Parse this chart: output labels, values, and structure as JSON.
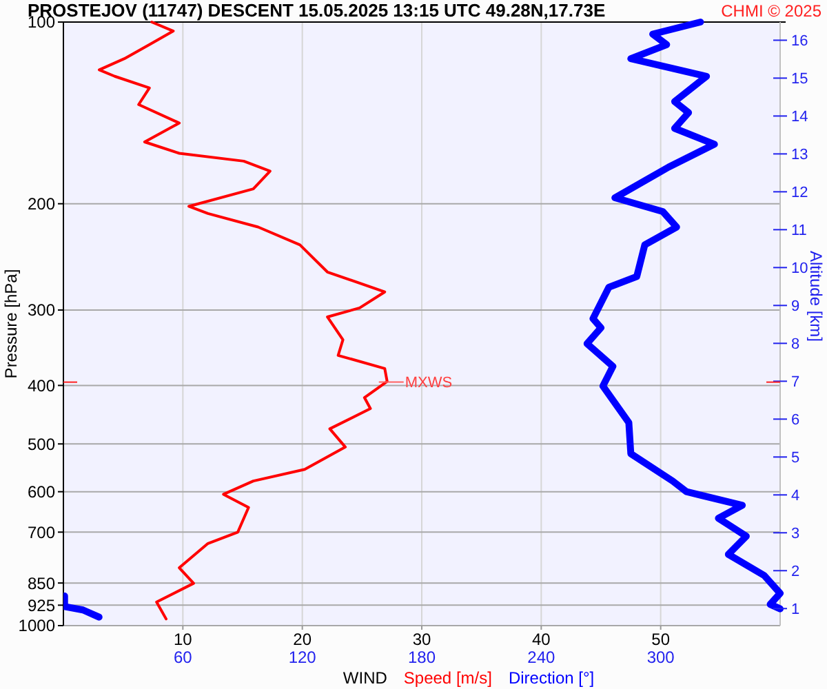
{
  "chart_data": {
    "type": "line",
    "orientation": "horizontal",
    "title": "PROSTEJOV (11747)   DESCENT   15.05.2025 13:15 UTC  49.28N,17.73E",
    "xlabel": "WIND",
    "ylabel": "Pressure [hPa]",
    "y2label": "Altitude [km]",
    "annotations": [
      "CHMI © 2025",
      {
        "text": "MXWS",
        "x": 27.1,
        "y": 395
      }
    ],
    "log": "y",
    "grid": true,
    "legend": "bottom",
    "xlim": [
      0,
      60
    ],
    "xticks": [
      10,
      20,
      30,
      40,
      50
    ],
    "x2lim": [
      0,
      360
    ],
    "x2ticks": [
      60,
      120,
      180,
      240,
      300
    ],
    "ylim": [
      1000,
      100
    ],
    "yticks": [
      100,
      200,
      300,
      400,
      500,
      600,
      700,
      850,
      925,
      1000
    ],
    "y2lim": [
      0.55,
      16.48
    ],
    "y2ticks": [
      1,
      2,
      3,
      4,
      5,
      6,
      7,
      8,
      9,
      10,
      11,
      12,
      13,
      14,
      15,
      16
    ],
    "series": [
      {
        "name": "Speed [m/s]",
        "color": "#ff0000",
        "values": [
          7.4,
          9.2,
          7.2,
          5.1,
          3.0,
          4.3,
          7.2,
          6.3,
          9.7,
          6.8,
          9.7,
          15.1,
          17.3,
          15.9,
          10.5,
          12.1,
          16.3,
          19.8,
          22.1,
          26.9,
          24.8,
          22.1,
          23.4,
          23.0,
          26.9,
          27.1,
          25.2,
          25.7,
          22.3,
          23.6,
          20.2,
          15.9,
          13.4,
          15.5,
          14.6,
          12.1,
          9.7,
          10.9,
          7.8,
          8.6
        ],
        "x": [
          100,
          103.5,
          109,
          115,
          120,
          123,
          128.6,
          137,
          147,
          158,
          165,
          170,
          176.6,
          189,
          202,
          207.6,
          218.6,
          234,
          259.5,
          280,
          297.6,
          308,
          336,
          356.7,
          375,
          394,
          419,
          437,
          472,
          506,
          551,
          576,
          606,
          637,
          700,
          731,
          802,
          851,
          914,
          975
        ]
      },
      {
        "name": "Direction [°]",
        "color": "#0000ff",
        "axis": "x2",
        "values": [
          320,
          296,
          303,
          285,
          323,
          307,
          314,
          307,
          327,
          304,
          277,
          301,
          308,
          292,
          288,
          274,
          266,
          270,
          263,
          276,
          271,
          284,
          285,
          306,
          313,
          341,
          329,
          343,
          334,
          352,
          360,
          355,
          360
        ],
        "x": [
          100,
          104.7,
          109,
          115,
          123,
          135.4,
          141.3,
          150,
          159.4,
          173.9,
          195.5,
          206,
          218.6,
          234,
          264,
          275,
          310,
          321,
          341,
          372,
          401,
          461,
          519,
          576,
          600,
          632,
          664,
          711,
          762,
          826,
          884,
          922,
          938
        ]
      },
      {
        "color": "#0000ff",
        "axis": "x2",
        "values": [
          0.6,
          0.6,
          9.8,
          17.9
        ],
        "x": [
          893,
          930,
          942,
          968
        ]
      }
    ]
  }
}
